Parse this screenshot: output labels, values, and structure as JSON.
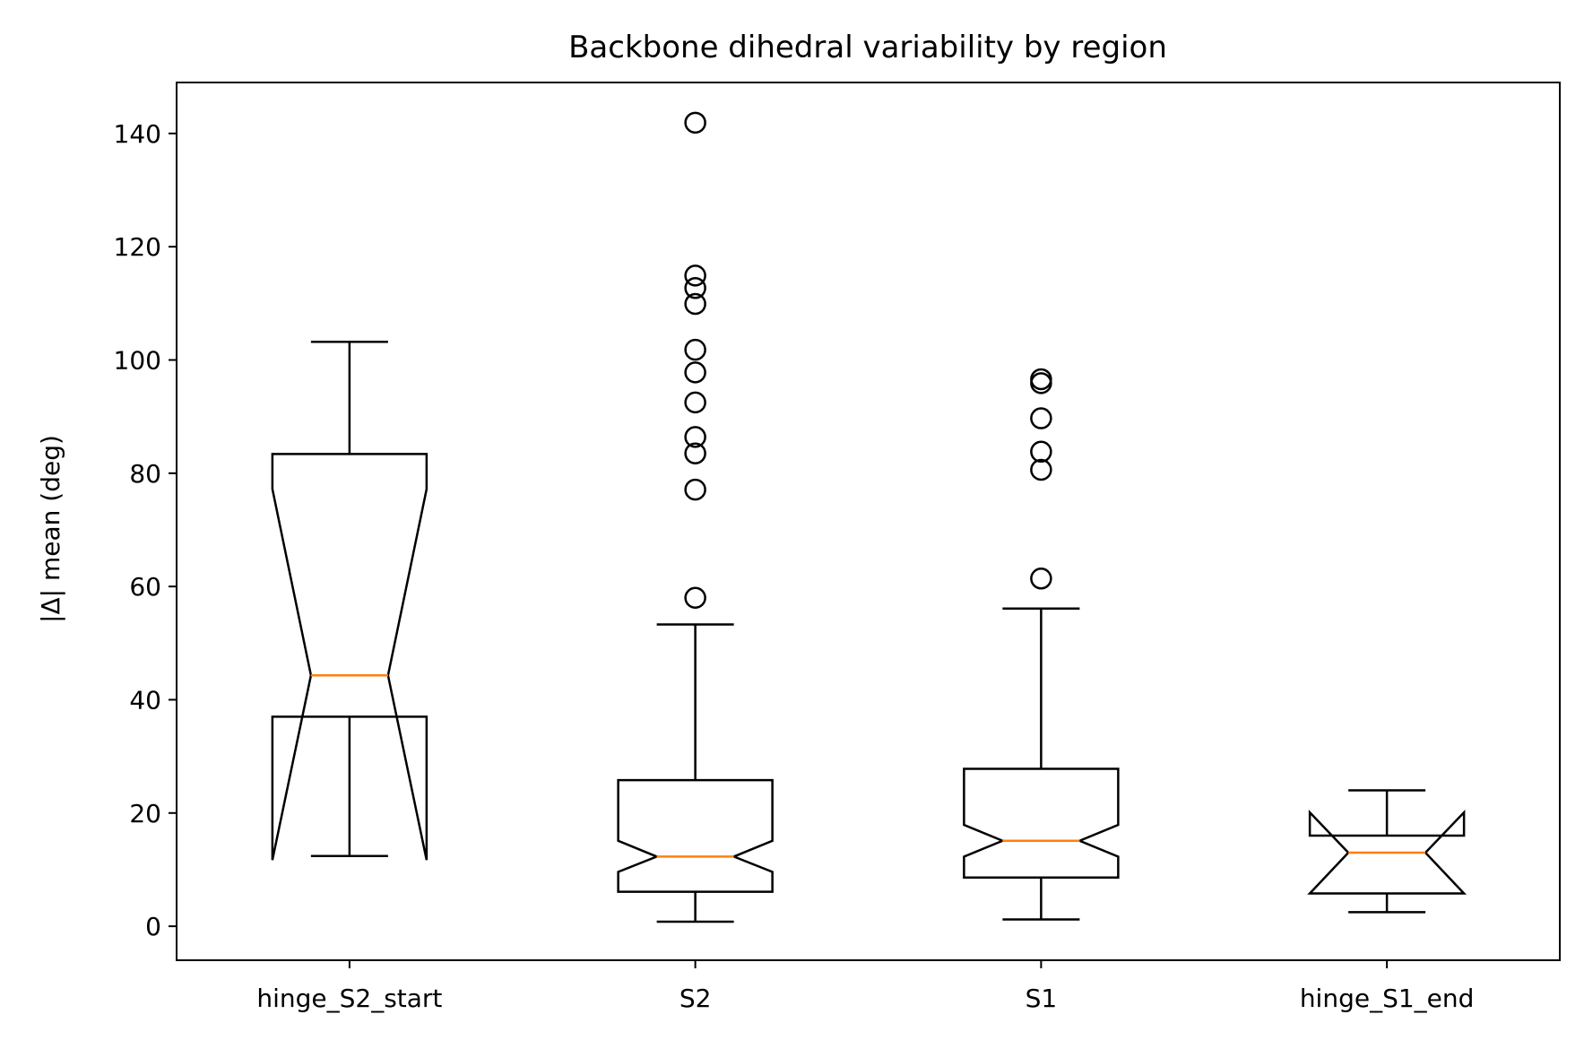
{
  "chart_data": {
    "type": "box",
    "title": "Backbone dihedral variability by region",
    "xlabel": "",
    "ylabel": "|Δ| mean (deg)",
    "ylim": [
      -6,
      149
    ],
    "yticks": [
      0,
      20,
      40,
      60,
      80,
      100,
      120,
      140
    ],
    "notched": true,
    "categories": [
      "hinge_S2_start",
      "S2",
      "S1",
      "hinge_S1_end"
    ],
    "boxes": [
      {
        "name": "hinge_S2_start",
        "whisker_low": 12.4,
        "q1": 37.0,
        "median": 44.3,
        "q3": 83.4,
        "whisker_high": 103.2,
        "notch_low": 11.7,
        "notch_high": 77.2,
        "outliers": []
      },
      {
        "name": "S2",
        "whisker_low": 0.8,
        "q1": 6.1,
        "median": 12.3,
        "q3": 25.8,
        "whisker_high": 53.3,
        "notch_low": 9.6,
        "notch_high": 15.1,
        "outliers": [
          58.0,
          77.1,
          83.5,
          86.4,
          92.5,
          97.8,
          101.8,
          109.9,
          112.7,
          114.9,
          141.9
        ]
      },
      {
        "name": "S1",
        "whisker_low": 1.2,
        "q1": 8.6,
        "median": 15.1,
        "q3": 27.8,
        "whisker_high": 56.1,
        "notch_low": 12.3,
        "notch_high": 17.9,
        "outliers": [
          61.4,
          80.6,
          83.8,
          89.7,
          95.9,
          96.6
        ]
      },
      {
        "name": "hinge_S1_end",
        "whisker_low": 2.5,
        "q1": 5.8,
        "median": 13.0,
        "q3": 16.0,
        "whisker_high": 24.0,
        "notch_low": 5.8,
        "notch_high": 20.1,
        "outliers": []
      }
    ],
    "colors": {
      "box": "#000000",
      "median": "#ff7f0e"
    }
  }
}
